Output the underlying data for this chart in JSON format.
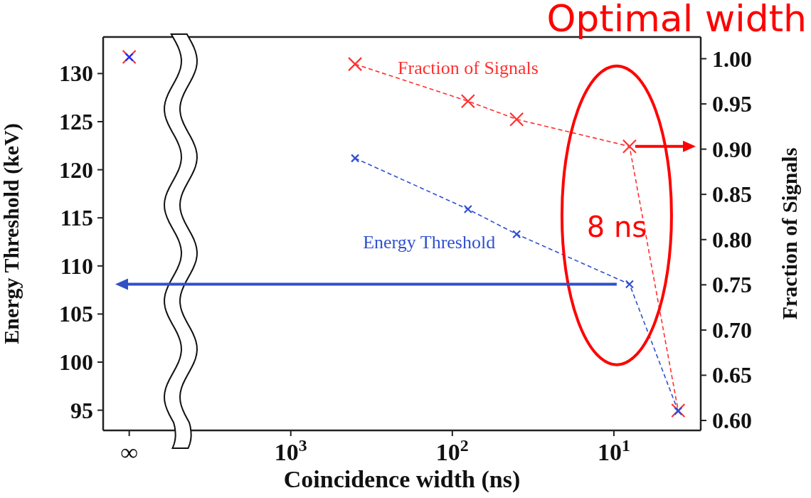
{
  "chart_data": {
    "type": "line",
    "title": "Optimal width",
    "xlabel": "Coincidence width (ns)",
    "ylabel": "Energy Threshold (keV)",
    "y2label": "Fraction of Signals",
    "annotations": [
      "8 ns"
    ],
    "log": "x",
    "xlim": [
      14500,
      2.9
    ],
    "xticks": [
      {
        "value": 10000,
        "label": "∞"
      },
      {
        "value": 1000,
        "label": "10$^{3}$"
      },
      {
        "value": 100,
        "label": "10$^{2}$"
      },
      {
        "value": 10,
        "label": "10$^{1}$"
      }
    ],
    "ylim": [
      92.9,
      133.8
    ],
    "yticks": [
      95,
      100,
      105,
      110,
      115,
      120,
      125,
      130
    ],
    "y2lim": [
      0.589,
      1.024
    ],
    "y2ticks": [
      {
        "value": 0.6,
        "label": "0.60"
      },
      0.65,
      {
        "value": 0.7,
        "label": "0.70"
      },
      0.75,
      {
        "value": 0.8,
        "label": "0.80"
      },
      0.85,
      {
        "value": 0.9,
        "label": "0.90"
      },
      0.95,
      {
        "value": 1.0,
        "label": "1.00"
      }
    ],
    "grid": false,
    "legend": false,
    "line_style": "dashed",
    "marker": "cross",
    "series": [
      {
        "name": "Fraction of Signals",
        "axis": "y2",
        "color": "#ff3030",
        "x": [
          400,
          80,
          40,
          8,
          4
        ],
        "values": [
          0.994,
          0.953,
          0.933,
          0.903,
          0.611
        ]
      },
      {
        "name": "Energy Threshold",
        "axis": "y",
        "color": "#3050d0",
        "x": [
          400,
          80,
          40,
          8,
          4
        ],
        "values": [
          121.2,
          115.9,
          113.3,
          108.1,
          94.9
        ]
      },
      {
        "type": "scatter",
        "axis": "y2",
        "color": "#ff3030",
        "x": [
          10000
        ],
        "values": [
          1.002
        ]
      },
      {
        "type": "scatter",
        "axis": "y",
        "color": "#2030ff",
        "x": [
          10000
        ],
        "values": [
          131.7
        ]
      }
    ]
  }
}
